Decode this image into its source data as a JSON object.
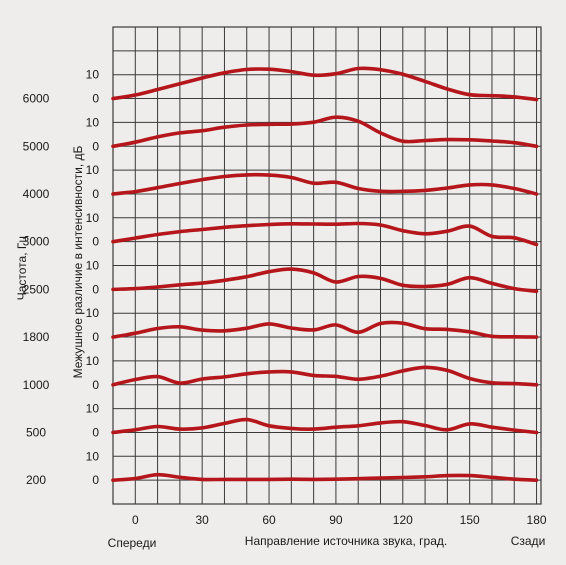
{
  "chart_data": {
    "type": "line",
    "xlabel": "Направление источника звука, град.",
    "x_left_label": "Спереди",
    "x_right_label": "Сзади",
    "ylabel_freq": "Частота, Гц",
    "ylabel_db": "Межушное различие в интенсивности, дБ",
    "xlim": [
      -10,
      182
    ],
    "x_ticks": [
      "0",
      "30",
      "60",
      "90",
      "120",
      "150",
      "180"
    ],
    "grid": true,
    "line_color": "#b5161b",
    "x": [
      -10,
      0,
      10,
      20,
      30,
      40,
      50,
      60,
      70,
      80,
      90,
      100,
      110,
      120,
      130,
      140,
      150,
      160,
      170,
      180
    ],
    "panels": [
      {
        "frequency": "6000",
        "db_ticks": [
          "10",
          "0"
        ],
        "values": [
          0.0,
          1.5,
          3.8,
          6.2,
          8.6,
          10.8,
          12.2,
          12.3,
          11.3,
          9.8,
          10.4,
          12.6,
          12.1,
          10.2,
          7.2,
          4.0,
          1.6,
          1.2,
          0.7,
          -0.4
        ]
      },
      {
        "frequency": "5000",
        "db_ticks": [
          "10",
          "0"
        ],
        "values": [
          0.0,
          1.7,
          3.9,
          5.6,
          6.5,
          8.0,
          8.9,
          9.2,
          9.3,
          10.1,
          12.2,
          10.5,
          5.6,
          2.1,
          2.4,
          2.8,
          2.7,
          2.2,
          1.5,
          0.0
        ]
      },
      {
        "frequency": "4000",
        "db_ticks": [
          "10",
          "0"
        ],
        "values": [
          0.0,
          1.0,
          2.6,
          4.4,
          6.0,
          7.3,
          8.0,
          7.9,
          6.9,
          4.5,
          4.9,
          2.3,
          1.1,
          1.1,
          1.5,
          2.5,
          3.8,
          3.8,
          2.3,
          0.0
        ]
      },
      {
        "frequency": "3000",
        "db_ticks": [
          "10",
          "0"
        ],
        "values": [
          0.0,
          1.5,
          3.0,
          4.2,
          5.1,
          6.0,
          6.7,
          7.2,
          7.5,
          7.4,
          7.3,
          7.6,
          7.0,
          4.6,
          3.3,
          4.4,
          6.5,
          2.2,
          1.6,
          -1.2
        ]
      },
      {
        "frequency": "2500",
        "db_ticks": [
          "10",
          "0"
        ],
        "values": [
          0.0,
          0.3,
          1.0,
          1.9,
          2.6,
          3.8,
          5.3,
          7.4,
          8.5,
          6.9,
          3.1,
          5.4,
          4.6,
          1.7,
          1.2,
          2.1,
          4.9,
          2.5,
          0.3,
          -0.8
        ]
      },
      {
        "frequency": "1800",
        "db_ticks": [
          "10",
          "0"
        ],
        "values": [
          0.0,
          1.6,
          3.6,
          4.3,
          2.9,
          2.6,
          3.7,
          5.5,
          3.8,
          3.0,
          5.1,
          2.0,
          5.7,
          5.8,
          3.5,
          3.2,
          2.2,
          0.3,
          0.1,
          0.0
        ]
      },
      {
        "frequency": "1000",
        "db_ticks": [
          "10",
          "0"
        ],
        "values": [
          0.0,
          2.2,
          3.4,
          0.7,
          2.4,
          3.3,
          4.6,
          5.4,
          5.4,
          3.9,
          3.5,
          2.3,
          3.6,
          5.8,
          7.3,
          6.0,
          2.6,
          0.8,
          0.5,
          0.0
        ]
      },
      {
        "frequency": "500",
        "db_ticks": [
          "10",
          "0"
        ],
        "values": [
          0.0,
          1.1,
          2.5,
          1.4,
          1.9,
          3.8,
          5.4,
          2.8,
          1.7,
          1.4,
          2.2,
          2.8,
          4.0,
          4.5,
          2.9,
          1.1,
          3.6,
          2.2,
          1.0,
          0.0
        ]
      },
      {
        "frequency": "200",
        "db_ticks": [
          "10",
          "0"
        ],
        "values": [
          0.0,
          0.7,
          2.3,
          1.2,
          0.3,
          0.3,
          0.3,
          0.3,
          0.4,
          0.3,
          0.4,
          0.6,
          0.9,
          1.1,
          1.4,
          1.9,
          1.9,
          1.2,
          0.4,
          0.0
        ]
      }
    ]
  }
}
